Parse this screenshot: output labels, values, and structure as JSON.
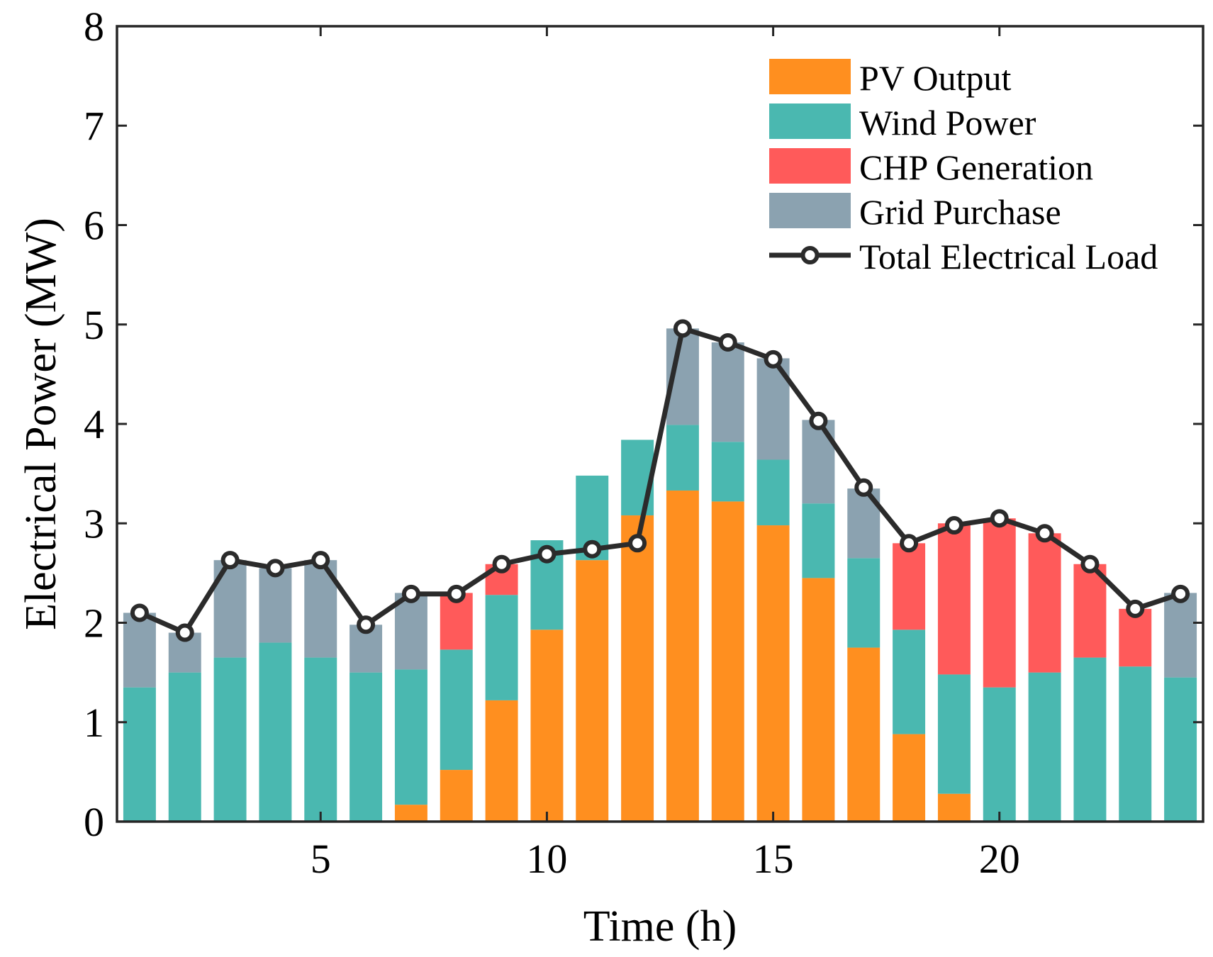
{
  "chart_data": {
    "type": "bar",
    "stacked": true,
    "title": "",
    "xlabel": "Time (h)",
    "ylabel": "Electrical Power (MW)",
    "ylim": [
      0,
      8
    ],
    "xlim": [
      0.5,
      24.5
    ],
    "x_ticks": [
      5,
      10,
      15,
      20
    ],
    "y_ticks": [
      0,
      1,
      2,
      3,
      4,
      5,
      6,
      7,
      8
    ],
    "categories": [
      1,
      2,
      3,
      4,
      5,
      6,
      7,
      8,
      9,
      10,
      11,
      12,
      13,
      14,
      15,
      16,
      17,
      18,
      19,
      20,
      21,
      22,
      23,
      24
    ],
    "series": [
      {
        "name": "PV Output",
        "color": "#FF8F1F",
        "values": [
          0,
          0,
          0,
          0,
          0,
          0,
          0.17,
          0.52,
          1.22,
          1.93,
          2.63,
          3.08,
          3.33,
          3.22,
          2.98,
          2.45,
          1.75,
          0.88,
          0.28,
          0,
          0,
          0,
          0,
          0
        ]
      },
      {
        "name": "Wind Power",
        "color": "#4AB8B0",
        "values": [
          1.35,
          1.5,
          1.65,
          1.8,
          1.65,
          1.5,
          1.36,
          1.21,
          1.06,
          0.9,
          0.85,
          0.76,
          0.66,
          0.6,
          0.66,
          0.75,
          0.9,
          1.05,
          1.2,
          1.35,
          1.5,
          1.65,
          1.56,
          1.45
        ]
      },
      {
        "name": "CHP Generation",
        "color": "#FF5A5A",
        "values": [
          0,
          0,
          0,
          0,
          0,
          0,
          0,
          0.57,
          0.31,
          0,
          0,
          0,
          0,
          0,
          0,
          0,
          0,
          0.87,
          1.52,
          1.7,
          1.4,
          0.94,
          0.58,
          0
        ]
      },
      {
        "name": "Grid Purchase",
        "color": "#8BA2B0",
        "values": [
          0.75,
          0.4,
          0.98,
          0.75,
          0.98,
          0.48,
          0.77,
          0,
          0,
          0,
          0,
          0,
          0.97,
          1.0,
          1.02,
          0.84,
          0.7,
          0,
          0,
          0,
          0,
          0,
          0,
          0.85
        ]
      }
    ],
    "line": {
      "name": "Total Electrical Load",
      "color": "#2B2B2B",
      "values": [
        2.1,
        1.9,
        2.63,
        2.55,
        2.63,
        1.98,
        2.29,
        2.29,
        2.59,
        2.69,
        2.74,
        2.8,
        4.96,
        4.82,
        4.65,
        4.03,
        3.36,
        2.8,
        2.98,
        3.05,
        2.9,
        2.59,
        2.14,
        2.29
      ]
    },
    "legend": {
      "position": "top-right",
      "entries": [
        "PV Output",
        "Wind Power",
        "CHP Generation",
        "Grid Purchase",
        "Total Electrical Load"
      ]
    },
    "grid": false
  }
}
